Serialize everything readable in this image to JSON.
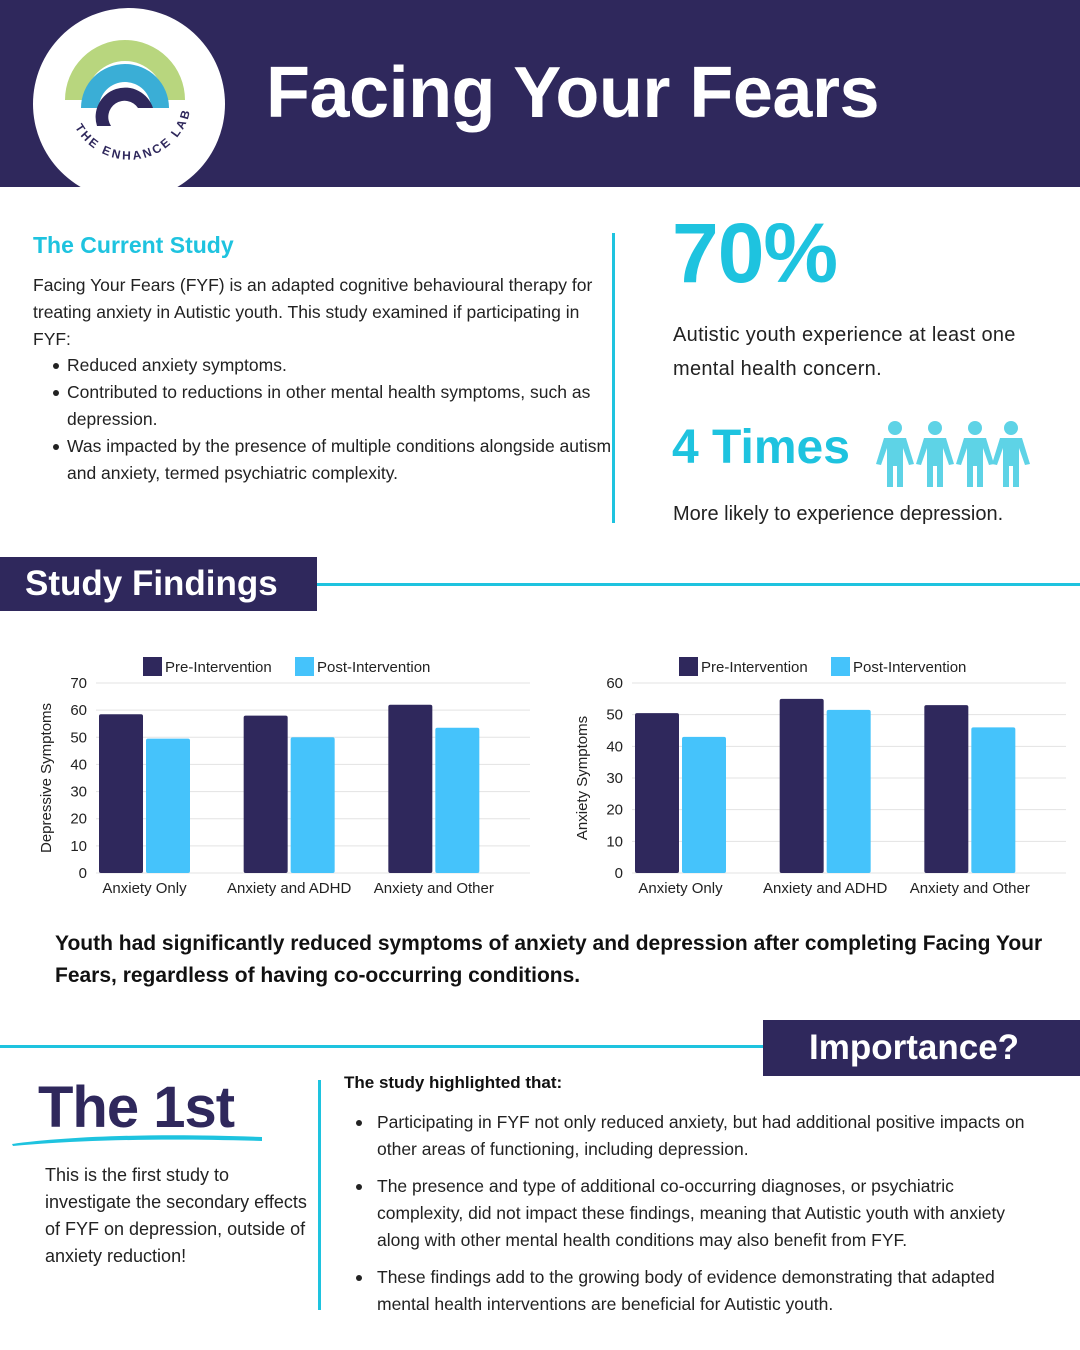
{
  "header": {
    "title": "Facing Your Fears",
    "logo_text": "THE ENHANCE LAB"
  },
  "study": {
    "heading": "The Current Study",
    "intro": "Facing Your Fears (FYF) is an adapted cognitive behavioural therapy for treating anxiety in Autistic youth. This study examined if participating in FYF:",
    "bullets": [
      "Reduced anxiety symptoms.",
      "Contributed to reductions in other mental health symptoms, such as depression.",
      "Was impacted by the presence of multiple conditions alongside autism and anxiety, termed psychiatric complexity."
    ]
  },
  "stats": {
    "percent": "70%",
    "percent_text": "Autistic youth experience at least one mental health concern.",
    "times": "4 Times",
    "times_text": "More likely to experience depression."
  },
  "findings_banner": "Study Findings",
  "chart_data": [
    {
      "type": "bar",
      "categories": [
        "Anxiety Only",
        "Anxiety and ADHD",
        "Anxiety and Other"
      ],
      "series": [
        {
          "name": "Pre-Intervention",
          "values": [
            58.5,
            58,
            62
          ]
        },
        {
          "name": "Post-Intervention",
          "values": [
            49.5,
            50,
            53.5
          ]
        }
      ],
      "ylabel": "Depressive Symptoms",
      "ylim": [
        0,
        70
      ],
      "yticks": [
        0,
        10,
        20,
        30,
        40,
        50,
        60,
        70
      ],
      "grid": true,
      "legend": "top-center"
    },
    {
      "type": "bar",
      "categories": [
        "Anxiety Only",
        "Anxiety and ADHD",
        "Anxiety and Other"
      ],
      "series": [
        {
          "name": "Pre-Intervention",
          "values": [
            50.5,
            55,
            53
          ]
        },
        {
          "name": "Post-Intervention",
          "values": [
            43,
            51.5,
            46
          ]
        }
      ],
      "ylabel": "Anxiety Symptoms",
      "ylim": [
        0,
        60
      ],
      "yticks": [
        0,
        10,
        20,
        30,
        40,
        50,
        60
      ],
      "grid": true,
      "legend": "top-center"
    }
  ],
  "colors": {
    "navy": "#2f285c",
    "cyan": "#1ec3df",
    "pre": "#2f285c",
    "post": "#45c3fb",
    "logo_green": "#b8d67e",
    "logo_blue": "#3aaed6"
  },
  "finding_text": "Youth had significantly reduced symptoms of anxiety and depression after completing Facing Your Fears, regardless of having co-occurring conditions.",
  "importance_banner": "Importance?",
  "first": {
    "title": "The 1st",
    "text": "This is the first study to investigate the secondary effects of FYF on depression, outside of anxiety reduction!"
  },
  "importance": {
    "heading": "The study highlighted that:",
    "bullets": [
      "Participating in FYF not only reduced anxiety, but had additional positive impacts on other areas of functioning, including depression.",
      "The presence and type of additional co-occurring diagnoses, or psychiatric complexity, did not impact these findings, meaning that Autistic youth with anxiety along with other mental health conditions may also benefit from FYF.",
      "These findings add to the growing body of evidence demonstrating that adapted mental health interventions are beneficial for Autistic youth."
    ]
  },
  "icons": {
    "logo": "enhance-lab-logo",
    "people": "people-icon"
  }
}
